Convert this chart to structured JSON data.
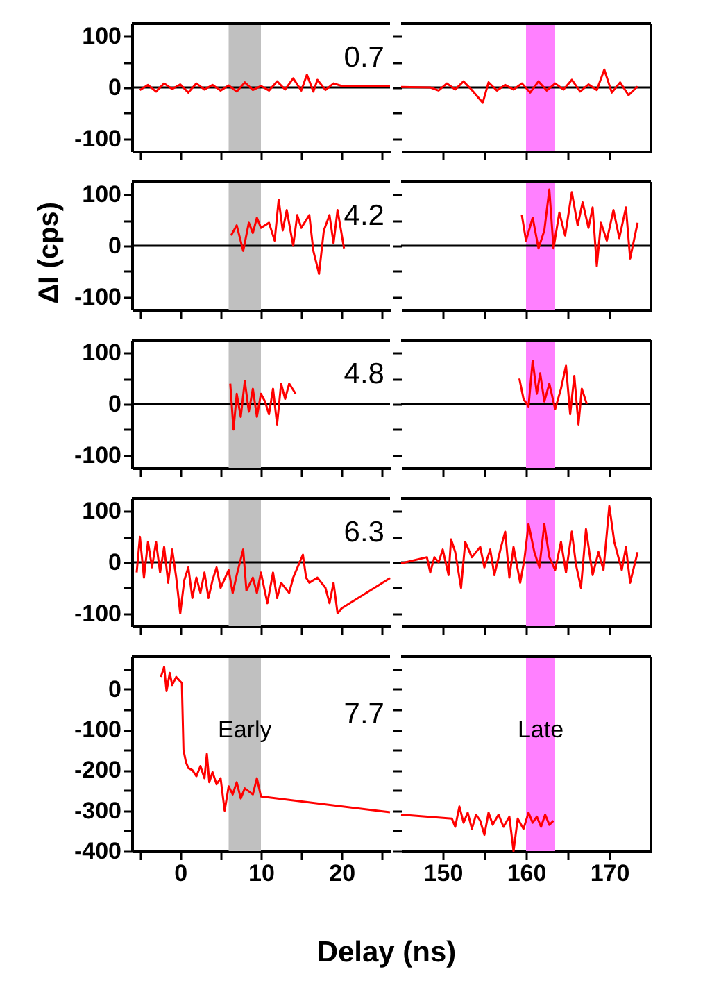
{
  "chart_data": [
    {
      "type": "line",
      "xlim": [
        -6,
        26
      ],
      "xticks": [
        {
          "value": -5,
          "label": null
        },
        0,
        {
          "value": 5,
          "label": null
        },
        10,
        {
          "value": 15,
          "label": null
        },
        20,
        {
          "value": 25,
          "label": null
        }
      ],
      "ylim": [
        -125,
        125
      ],
      "yticks": [
        -100,
        {
          "value": -50,
          "label": null
        },
        0,
        {
          "value": 50,
          "label": null
        },
        100
      ],
      "tick_labels": "y",
      "annotations": [
        "0.7"
      ],
      "bands": [
        {
          "axis": "x",
          "from": 6,
          "to": 10,
          "color": "#c0c0c0"
        }
      ],
      "ref_lines": [
        {
          "axis": "y",
          "value": 0,
          "color": "#000000"
        }
      ],
      "series": [
        {
          "color": "#ff0000",
          "x": [
            -5,
            -4,
            -3,
            -2,
            -1,
            0,
            1,
            2,
            3,
            4,
            5,
            6,
            7,
            8,
            9,
            10,
            11,
            12,
            13,
            14,
            15,
            15.7,
            16.5,
            17,
            18,
            19,
            20,
            26
          ],
          "values": [
            -5,
            5,
            -8,
            8,
            -3,
            6,
            -10,
            8,
            -4,
            5,
            -6,
            4,
            -8,
            10,
            -5,
            3,
            -6,
            12,
            -4,
            18,
            -6,
            25,
            -8,
            15,
            -5,
            8,
            3,
            2
          ]
        }
      ]
    },
    {
      "type": "line",
      "xlim": [
        145,
        175
      ],
      "xticks": [
        150,
        {
          "value": 155,
          "label": null
        },
        160,
        {
          "value": 165,
          "label": null
        },
        170
      ],
      "ylim": [
        -125,
        125
      ],
      "yticks": [
        -100,
        {
          "value": -50,
          "label": null
        },
        0,
        {
          "value": 50,
          "label": null
        },
        100
      ],
      "tick_labels": false,
      "bands": [
        {
          "axis": "x",
          "from": 160,
          "to": 163.5,
          "color": "#ff80ff"
        }
      ],
      "ref_lines": [
        {
          "axis": "y",
          "value": 0,
          "color": "#000000"
        }
      ],
      "series": [
        {
          "color": "#ff0000",
          "x": [
            145,
            148.5,
            149.5,
            150.5,
            151.5,
            152.5,
            153.5,
            154.8,
            155.5,
            156.5,
            157.5,
            158.5,
            159.5,
            160.5,
            161.5,
            162.5,
            163.5,
            164.5,
            165.5,
            166.5,
            167.5,
            168.5,
            169.4,
            170.3,
            171.3,
            172.3,
            173.4
          ],
          "values": [
            1,
            0,
            -6,
            8,
            -4,
            12,
            -5,
            -30,
            10,
            -6,
            5,
            -4,
            8,
            -10,
            12,
            -6,
            8,
            -4,
            15,
            -8,
            6,
            -5,
            35,
            -10,
            10,
            -15,
            2
          ]
        }
      ]
    },
    {
      "type": "line",
      "ylabel": "ΔI (cps)",
      "xlim": [
        -6,
        26
      ],
      "xticks": [
        {
          "value": -5,
          "label": null
        },
        0,
        {
          "value": 5,
          "label": null
        },
        10,
        {
          "value": 15,
          "label": null
        },
        20,
        {
          "value": 25,
          "label": null
        }
      ],
      "ylim": [
        -125,
        125
      ],
      "yticks": [
        -100,
        {
          "value": -50,
          "label": null
        },
        0,
        {
          "value": 50,
          "label": null
        },
        100
      ],
      "tick_labels": "y",
      "annotations": [
        "4.2"
      ],
      "bands": [
        {
          "axis": "x",
          "from": 6,
          "to": 10,
          "color": "#c0c0c0"
        }
      ],
      "ref_lines": [
        {
          "axis": "y",
          "value": 0,
          "color": "#000000"
        }
      ],
      "series": [
        {
          "color": "#ff0000",
          "x": [
            6.3,
            7,
            7.8,
            8.5,
            9,
            9.5,
            10,
            11,
            11.7,
            12.2,
            12.7,
            13.2,
            14,
            14.5,
            15,
            16,
            16.5,
            17.2,
            17.8,
            18.5,
            19,
            19.5,
            20.3
          ],
          "values": [
            20,
            40,
            -10,
            45,
            25,
            55,
            35,
            45,
            10,
            90,
            30,
            70,
            0,
            60,
            35,
            60,
            -10,
            -55,
            30,
            60,
            5,
            70,
            -5
          ]
        }
      ]
    },
    {
      "type": "line",
      "xlim": [
        145,
        175
      ],
      "xticks": [
        150,
        {
          "value": 155,
          "label": null
        },
        160,
        {
          "value": 165,
          "label": null
        },
        170
      ],
      "ylim": [
        -125,
        125
      ],
      "yticks": [
        -100,
        {
          "value": -50,
          "label": null
        },
        0,
        {
          "value": 50,
          "label": null
        },
        100
      ],
      "tick_labels": false,
      "bands": [
        {
          "axis": "x",
          "from": 160,
          "to": 163.5,
          "color": "#ff80ff"
        }
      ],
      "ref_lines": [
        {
          "axis": "y",
          "value": 0,
          "color": "#000000"
        }
      ],
      "series": [
        {
          "color": "#ff0000",
          "x": [
            159.5,
            160,
            160.8,
            161.5,
            162.2,
            162.8,
            163.3,
            164,
            164.7,
            165.5,
            166.2,
            166.8,
            167.5,
            168,
            168.5,
            169,
            169.7,
            170.5,
            171.2,
            172,
            172.5,
            173.4
          ],
          "values": [
            60,
            10,
            55,
            -5,
            30,
            110,
            -5,
            65,
            20,
            105,
            40,
            85,
            35,
            75,
            -40,
            45,
            10,
            70,
            15,
            75,
            -25,
            45
          ]
        }
      ]
    },
    {
      "type": "line",
      "xlim": [
        -6,
        26
      ],
      "xticks": [
        {
          "value": -5,
          "label": null
        },
        0,
        {
          "value": 5,
          "label": null
        },
        10,
        {
          "value": 15,
          "label": null
        },
        20,
        {
          "value": 25,
          "label": null
        }
      ],
      "ylim": [
        -125,
        125
      ],
      "yticks": [
        -100,
        {
          "value": -50,
          "label": null
        },
        0,
        {
          "value": 50,
          "label": null
        },
        100
      ],
      "tick_labels": "y",
      "annotations": [
        "4.8"
      ],
      "bands": [
        {
          "axis": "x",
          "from": 6,
          "to": 10,
          "color": "#c0c0c0"
        }
      ],
      "ref_lines": [
        {
          "axis": "y",
          "value": 0,
          "color": "#000000"
        }
      ],
      "series": [
        {
          "color": "#ff0000",
          "x": [
            6.2,
            6.6,
            7,
            7.5,
            8,
            8.5,
            9,
            9.5,
            10,
            10.5,
            11,
            11.5,
            12,
            12.5,
            13,
            13.5,
            14.3
          ],
          "values": [
            40,
            -50,
            20,
            -25,
            45,
            -15,
            30,
            -25,
            20,
            5,
            -20,
            30,
            -40,
            40,
            10,
            40,
            20
          ]
        }
      ]
    },
    {
      "type": "line",
      "xlim": [
        145,
        175
      ],
      "xticks": [
        150,
        {
          "value": 155,
          "label": null
        },
        160,
        {
          "value": 165,
          "label": null
        },
        170
      ],
      "ylim": [
        -125,
        125
      ],
      "yticks": [
        -100,
        {
          "value": -50,
          "label": null
        },
        0,
        {
          "value": 50,
          "label": null
        },
        100
      ],
      "tick_labels": false,
      "bands": [
        {
          "axis": "x",
          "from": 160,
          "to": 163.5,
          "color": "#ff80ff"
        }
      ],
      "ref_lines": [
        {
          "axis": "y",
          "value": 0,
          "color": "#000000"
        }
      ],
      "series": [
        {
          "color": "#ff0000",
          "x": [
            159.2,
            159.7,
            160.3,
            160.8,
            161.3,
            161.7,
            162.2,
            162.8,
            163.5,
            164.2,
            164.8,
            165.3,
            165.8,
            166.3,
            166.7,
            167.3
          ],
          "values": [
            50,
            10,
            -5,
            85,
            20,
            60,
            5,
            40,
            -10,
            30,
            75,
            -20,
            55,
            -40,
            30,
            0
          ]
        }
      ]
    },
    {
      "type": "line",
      "xlim": [
        -6,
        26
      ],
      "xticks": [
        {
          "value": -5,
          "label": null
        },
        0,
        {
          "value": 5,
          "label": null
        },
        10,
        {
          "value": 15,
          "label": null
        },
        20,
        {
          "value": 25,
          "label": null
        }
      ],
      "ylim": [
        -125,
        125
      ],
      "yticks": [
        -100,
        {
          "value": -50,
          "label": null
        },
        0,
        {
          "value": 50,
          "label": null
        },
        100
      ],
      "tick_labels": "y",
      "annotations": [
        "6.3"
      ],
      "bands": [
        {
          "axis": "x",
          "from": 6,
          "to": 10,
          "color": "#c0c0c0"
        }
      ],
      "ref_lines": [
        {
          "axis": "y",
          "value": 0,
          "color": "#000000"
        }
      ],
      "series": [
        {
          "color": "#ff0000",
          "x": [
            -5.4,
            -5,
            -4.5,
            -4,
            -3.5,
            -3,
            -2.5,
            -2,
            -1.5,
            -1,
            -0.5,
            0,
            0.5,
            1,
            1.5,
            2,
            2.5,
            3,
            3.5,
            4,
            4.5,
            5,
            6,
            6.5,
            7,
            7.8,
            8.2,
            9,
            9.5,
            10,
            10.8,
            11.5,
            12,
            12.5,
            13.5,
            14,
            15.2,
            15.6,
            16,
            17,
            18,
            18.5,
            19,
            19.5,
            20,
            26
          ],
          "values": [
            -20,
            50,
            -30,
            40,
            -10,
            40,
            -20,
            30,
            -40,
            25,
            -30,
            -100,
            -35,
            -10,
            -70,
            -30,
            -60,
            -20,
            -70,
            -35,
            -10,
            -50,
            -15,
            -60,
            -25,
            25,
            -55,
            -30,
            -60,
            -20,
            -80,
            -20,
            -70,
            -40,
            -60,
            -30,
            15,
            -30,
            -40,
            -30,
            -50,
            -80,
            -40,
            -100,
            -90,
            -31
          ]
        }
      ]
    },
    {
      "type": "line",
      "xlim": [
        145,
        175
      ],
      "xticks": [
        150,
        {
          "value": 155,
          "label": null
        },
        160,
        {
          "value": 165,
          "label": null
        },
        170
      ],
      "ylim": [
        -125,
        125
      ],
      "yticks": [
        -100,
        {
          "value": -50,
          "label": null
        },
        0,
        {
          "value": 50,
          "label": null
        },
        100
      ],
      "tick_labels": false,
      "bands": [
        {
          "axis": "x",
          "from": 160,
          "to": 163.5,
          "color": "#ff80ff"
        }
      ],
      "ref_lines": [
        {
          "axis": "y",
          "value": 0,
          "color": "#000000"
        }
      ],
      "series": [
        {
          "color": "#ff0000",
          "x": [
            145,
            148.1,
            148.5,
            149,
            149.5,
            150,
            150.7,
            151,
            151.5,
            152.2,
            152.7,
            153.5,
            154.5,
            155,
            155.7,
            156.2,
            157,
            157.5,
            158,
            158.5,
            159.3,
            159.8,
            160.3,
            161,
            161.6,
            162.2,
            162.8,
            163.5,
            164.2,
            164.8,
            165.5,
            166,
            166.6,
            167.2,
            168,
            168.7,
            169.3,
            170,
            170.6,
            171.5,
            172,
            172.5,
            173.4
          ],
          "values": [
            -2,
            10,
            -20,
            10,
            0,
            25,
            -25,
            45,
            20,
            -50,
            40,
            10,
            30,
            -10,
            25,
            -25,
            30,
            60,
            -30,
            30,
            -40,
            5,
            75,
            20,
            -10,
            75,
            10,
            -15,
            40,
            -20,
            60,
            -5,
            -50,
            65,
            -25,
            20,
            -15,
            110,
            40,
            -15,
            30,
            -40,
            20
          ]
        }
      ]
    },
    {
      "type": "line",
      "xlabel": "Delay (ns)",
      "xlim": [
        -6,
        26
      ],
      "xticks": [
        {
          "value": -5,
          "label": null
        },
        0,
        {
          "value": 5,
          "label": null
        },
        10,
        {
          "value": 15,
          "label": null
        },
        20,
        {
          "value": 25,
          "label": null
        }
      ],
      "ylim": [
        -400,
        80
      ],
      "yticks": [
        -400,
        {
          "value": -350,
          "label": null
        },
        -300,
        {
          "value": -250,
          "label": null
        },
        -200,
        {
          "value": -150,
          "label": null
        },
        -100,
        {
          "value": -50,
          "label": null
        },
        0,
        {
          "value": 50,
          "label": null
        }
      ],
      "annotations": [
        "7.7"
      ],
      "bands": [
        {
          "axis": "x",
          "from": 6,
          "to": 10,
          "color": "#c0c0c0",
          "label": "Early"
        }
      ],
      "series": [
        {
          "color": "#ff0000",
          "x": [
            -2.4,
            -2,
            -1.7,
            -1.3,
            -1,
            -0.5,
            0.2,
            0.4,
            0.7,
            1,
            1.5,
            2,
            2.5,
            3,
            3.3,
            3.6,
            4,
            4.5,
            5,
            5.5,
            6,
            6.5,
            7,
            7.5,
            8,
            9,
            9.5,
            10,
            26
          ],
          "values": [
            30,
            55,
            -5,
            40,
            10,
            30,
            15,
            -150,
            -180,
            -195,
            -200,
            -215,
            -190,
            -220,
            -160,
            -230,
            -205,
            -235,
            -220,
            -300,
            -240,
            -260,
            -230,
            -270,
            -245,
            -260,
            -220,
            -265,
            -304
          ]
        }
      ]
    },
    {
      "type": "line",
      "xlim": [
        145,
        175
      ],
      "xticks": [
        150,
        {
          "value": 155,
          "label": null
        },
        160,
        {
          "value": 165,
          "label": null
        },
        170
      ],
      "ylim": [
        -400,
        80
      ],
      "yticks": [
        -400,
        {
          "value": -350,
          "label": null
        },
        -300,
        {
          "value": -250,
          "label": null
        },
        -200,
        {
          "value": -150,
          "label": null
        },
        -100,
        {
          "value": -50,
          "label": null
        },
        0,
        {
          "value": 50,
          "label": null
        }
      ],
      "tick_labels": "x",
      "bands": [
        {
          "axis": "x",
          "from": 160,
          "to": 163.5,
          "color": "#ff80ff",
          "label": "Late"
        }
      ],
      "series": [
        {
          "color": "#ff0000",
          "x": [
            145,
            151.1,
            151.5,
            152,
            152.5,
            153,
            153.5,
            154,
            154.5,
            155,
            155.5,
            156,
            156.7,
            157.3,
            158,
            158.5,
            159,
            159.7,
            160.3,
            160.8,
            161.3,
            161.8,
            162.3,
            162.8,
            163.3
          ],
          "values": [
            -310,
            -320,
            -340,
            -290,
            -330,
            -305,
            -345,
            -310,
            -325,
            -360,
            -305,
            -335,
            -310,
            -340,
            -315,
            -400,
            -320,
            -345,
            -305,
            -330,
            -315,
            -340,
            -310,
            -335,
            -325
          ]
        }
      ]
    }
  ]
}
